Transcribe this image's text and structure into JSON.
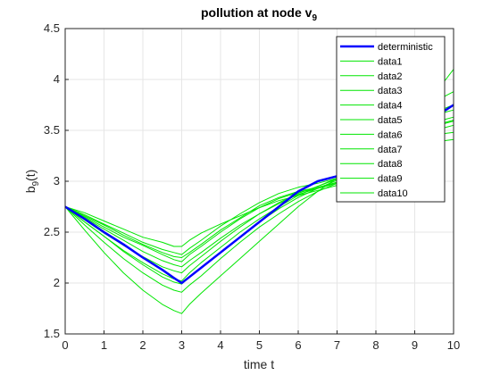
{
  "chart_data": {
    "type": "line",
    "title": "pollution at node v",
    "title_subscript": "9",
    "xlabel": "time t",
    "ylabel": "b",
    "ylabel_subscript": "9",
    "ylabel_suffix": "(t)",
    "xlim": [
      0,
      10
    ],
    "ylim": [
      1.5,
      4.5
    ],
    "xticks": [
      0,
      1,
      2,
      3,
      4,
      5,
      6,
      7,
      8,
      9,
      10
    ],
    "yticks": [
      1.5,
      2,
      2.5,
      3,
      3.5,
      4,
      4.5
    ],
    "x": [
      0,
      0.5,
      1,
      1.5,
      2,
      2.5,
      2.8,
      3,
      3.2,
      3.5,
      4,
      4.5,
      5,
      5.5,
      6,
      6.5,
      7,
      7.5,
      8,
      8.5,
      9,
      9.5,
      9.8,
      10
    ],
    "grid": true,
    "legend_position": "top-right",
    "colors": {
      "deterministic": "#0000ff",
      "data": "#00e600",
      "axis": "#262626",
      "grid": "#e6e6e6"
    },
    "series": [
      {
        "name": "deterministic",
        "values": [
          2.75,
          2.63,
          2.5,
          2.38,
          2.25,
          2.13,
          2.05,
          2.0,
          2.06,
          2.15,
          2.3,
          2.45,
          2.6,
          2.75,
          2.9,
          3.0,
          3.05,
          3.18,
          3.3,
          3.42,
          3.55,
          3.65,
          3.7,
          3.75
        ]
      },
      {
        "name": "data1",
        "values": [
          2.75,
          2.69,
          2.61,
          2.53,
          2.45,
          2.4,
          2.36,
          2.36,
          2.42,
          2.49,
          2.58,
          2.66,
          2.74,
          2.81,
          2.86,
          2.91,
          2.96,
          3.06,
          3.17,
          3.29,
          3.4,
          3.49,
          3.53,
          3.55
        ]
      },
      {
        "name": "data2",
        "values": [
          2.75,
          2.65,
          2.55,
          2.45,
          2.37,
          2.28,
          2.23,
          2.21,
          2.28,
          2.36,
          2.5,
          2.63,
          2.74,
          2.83,
          2.89,
          2.93,
          2.98,
          3.1,
          3.25,
          3.4,
          3.55,
          3.67,
          3.72,
          3.75
        ]
      },
      {
        "name": "data3",
        "values": [
          2.75,
          2.66,
          2.57,
          2.47,
          2.38,
          2.3,
          2.26,
          2.25,
          2.3,
          2.38,
          2.52,
          2.64,
          2.76,
          2.84,
          2.9,
          2.94,
          2.99,
          3.12,
          3.28,
          3.45,
          3.62,
          3.77,
          3.84,
          3.88
        ]
      },
      {
        "name": "data4",
        "values": [
          2.75,
          2.67,
          2.58,
          2.49,
          2.4,
          2.33,
          2.3,
          2.28,
          2.34,
          2.42,
          2.56,
          2.68,
          2.79,
          2.88,
          2.94,
          2.98,
          3.03,
          3.15,
          3.3,
          3.46,
          3.65,
          3.85,
          4.0,
          4.1
        ]
      },
      {
        "name": "data5",
        "values": [
          2.75,
          2.6,
          2.46,
          2.32,
          2.2,
          2.09,
          2.04,
          2.02,
          2.1,
          2.2,
          2.35,
          2.5,
          2.63,
          2.75,
          2.86,
          2.95,
          3.03,
          3.14,
          3.25,
          3.36,
          3.48,
          3.57,
          3.61,
          3.63
        ]
      },
      {
        "name": "data6",
        "values": [
          2.75,
          2.57,
          2.4,
          2.24,
          2.1,
          1.98,
          1.93,
          1.91,
          1.98,
          2.07,
          2.24,
          2.4,
          2.55,
          2.68,
          2.8,
          2.9,
          2.98,
          3.08,
          3.18,
          3.28,
          3.37,
          3.44,
          3.47,
          3.48
        ]
      },
      {
        "name": "data7",
        "values": [
          2.75,
          2.52,
          2.3,
          2.1,
          1.93,
          1.79,
          1.73,
          1.7,
          1.79,
          1.9,
          2.07,
          2.24,
          2.41,
          2.58,
          2.75,
          2.9,
          3.03,
          3.12,
          3.2,
          3.27,
          3.33,
          3.38,
          3.4,
          3.41
        ]
      },
      {
        "name": "data8",
        "values": [
          2.75,
          2.64,
          2.53,
          2.42,
          2.31,
          2.22,
          2.18,
          2.16,
          2.22,
          2.3,
          2.44,
          2.57,
          2.68,
          2.78,
          2.87,
          2.93,
          2.99,
          3.1,
          3.22,
          3.33,
          3.44,
          3.53,
          3.57,
          3.59
        ]
      },
      {
        "name": "data9",
        "values": [
          2.75,
          2.62,
          2.49,
          2.37,
          2.26,
          2.16,
          2.12,
          2.1,
          2.17,
          2.26,
          2.41,
          2.55,
          2.68,
          2.79,
          2.88,
          2.95,
          3.02,
          3.14,
          3.27,
          3.4,
          3.53,
          3.64,
          3.68,
          3.7
        ]
      },
      {
        "name": "data10",
        "values": [
          2.75,
          2.6,
          2.46,
          2.31,
          2.18,
          2.06,
          2.01,
          1.99,
          2.06,
          2.15,
          2.3,
          2.45,
          2.6,
          2.73,
          2.84,
          2.93,
          3.01,
          3.12,
          3.23,
          3.35,
          3.46,
          3.55,
          3.58,
          3.6
        ]
      }
    ]
  }
}
